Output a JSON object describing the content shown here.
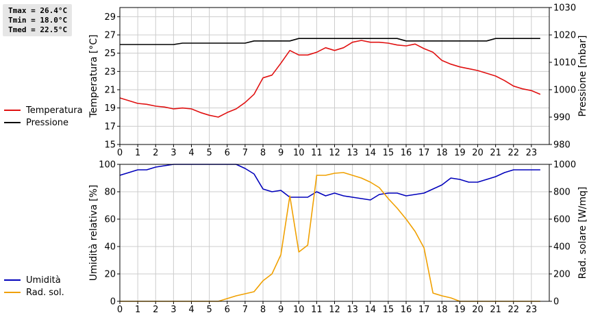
{
  "stats": {
    "tmax": "Tmax = 26.4°C",
    "tmin": "Tmin = 18.0°C",
    "tmed": "Tmed = 22.5°C"
  },
  "colors": {
    "temperature": "#e01010",
    "pressure": "#000000",
    "humidity": "#0000bb",
    "radiation": "#f0a000",
    "grid": "#cccccc"
  },
  "chart_data": [
    {
      "type": "line",
      "title": "",
      "ylabel": "Temperatura [°C]",
      "y2label": "Pressione [mbar]",
      "xlim": [
        0,
        24
      ],
      "ylim": [
        15,
        30
      ],
      "y2lim": [
        980,
        1030
      ],
      "xticks": [
        "0",
        "1",
        "2",
        "3",
        "4",
        "5",
        "6",
        "7",
        "8",
        "9",
        "10",
        "11",
        "12",
        "13",
        "14",
        "15",
        "16",
        "17",
        "18",
        "19",
        "20",
        "21",
        "22",
        "23"
      ],
      "yticks": [
        "15",
        "17",
        "19",
        "21",
        "23",
        "25",
        "27",
        "29"
      ],
      "y2ticks": [
        "980",
        "990",
        "1000",
        "1010",
        "1020",
        "1030"
      ],
      "grid": true,
      "legend_position": "left",
      "series": [
        {
          "name": "Temperatura",
          "axis": "left",
          "x": [
            0,
            0.5,
            1,
            1.5,
            2,
            2.5,
            3,
            3.5,
            4,
            4.5,
            5,
            5.5,
            6,
            6.5,
            7,
            7.5,
            8,
            8.5,
            9,
            9.5,
            10,
            10.5,
            11,
            11.5,
            12,
            12.5,
            13,
            13.5,
            14,
            14.5,
            15,
            15.5,
            16,
            16.5,
            17,
            17.5,
            18,
            18.5,
            19,
            19.5,
            20,
            20.5,
            21,
            21.5,
            22,
            22.5,
            23,
            23.5
          ],
          "y": [
            20.1,
            19.8,
            19.5,
            19.4,
            19.2,
            19.1,
            18.9,
            19.0,
            18.9,
            18.5,
            18.2,
            18.0,
            18.5,
            18.9,
            19.6,
            20.5,
            22.3,
            22.6,
            23.9,
            25.3,
            24.8,
            24.8,
            25.1,
            25.6,
            25.3,
            25.6,
            26.2,
            26.4,
            26.2,
            26.2,
            26.1,
            25.9,
            25.8,
            26.0,
            25.5,
            25.1,
            24.2,
            23.8,
            23.5,
            23.3,
            23.1,
            22.8,
            22.5,
            22.0,
            21.4,
            21.1,
            20.9,
            20.5
          ]
        },
        {
          "name": "Pressione",
          "axis": "right",
          "x": [
            0,
            3,
            3.5,
            7,
            7.5,
            9.5,
            10,
            15.5,
            16,
            20.5,
            21,
            23.5
          ],
          "y": [
            1016.5,
            1016.5,
            1017.0,
            1017.0,
            1017.8,
            1017.8,
            1018.7,
            1018.7,
            1017.8,
            1017.8,
            1018.7,
            1018.7
          ]
        }
      ]
    },
    {
      "type": "line",
      "title": "",
      "ylabel": "Umidità relativa [%]",
      "y2label": "Rad. solare [W/mq]",
      "xlim": [
        0,
        24
      ],
      "ylim": [
        0,
        100
      ],
      "y2lim": [
        0,
        1000
      ],
      "xticks": [
        "0",
        "1",
        "2",
        "3",
        "4",
        "5",
        "6",
        "7",
        "8",
        "9",
        "10",
        "11",
        "12",
        "13",
        "14",
        "15",
        "16",
        "17",
        "18",
        "19",
        "20",
        "21",
        "22",
        "23"
      ],
      "yticks": [
        "0",
        "20",
        "40",
        "60",
        "80",
        "100"
      ],
      "y2ticks": [
        "0",
        "200",
        "400",
        "600",
        "800",
        "1000"
      ],
      "grid": true,
      "legend_position": "left",
      "series": [
        {
          "name": "Umidità",
          "axis": "left",
          "x": [
            0,
            0.5,
            1,
            1.5,
            2,
            2.5,
            3,
            3.5,
            4,
            4.5,
            5,
            5.5,
            6,
            6.5,
            7,
            7.5,
            8,
            8.5,
            9,
            9.5,
            10,
            10.5,
            11,
            11.5,
            12,
            12.5,
            13,
            13.5,
            14,
            14.5,
            15,
            15.5,
            16,
            16.5,
            17,
            17.5,
            18,
            18.5,
            19,
            19.5,
            20,
            20.5,
            21,
            21.5,
            22,
            22.5,
            23,
            23.5
          ],
          "y": [
            92,
            94,
            96,
            96,
            98,
            99,
            100,
            100,
            100,
            100,
            100,
            100,
            100,
            100,
            97,
            93,
            82,
            80,
            81,
            76,
            76,
            76,
            80,
            77,
            79,
            77,
            76,
            75,
            74,
            78,
            79,
            79,
            77,
            78,
            79,
            82,
            85,
            90,
            89,
            87,
            87,
            89,
            91,
            94,
            96,
            96,
            96,
            96
          ]
        },
        {
          "name": "Rad. sol.",
          "axis": "right",
          "x": [
            0,
            0.5,
            1,
            1.5,
            2,
            2.5,
            3,
            3.5,
            4,
            4.5,
            5,
            5.5,
            6,
            6.5,
            7,
            7.5,
            8,
            8.5,
            9,
            9.5,
            10,
            10.5,
            11,
            11.5,
            12,
            12.5,
            13,
            13.5,
            14,
            14.5,
            15,
            15.5,
            16,
            16.5,
            17,
            17.5,
            18,
            18.5,
            19,
            19.5,
            20,
            20.5,
            21,
            21.5,
            22,
            22.5,
            23,
            23.5
          ],
          "y": [
            0,
            0,
            0,
            0,
            0,
            0,
            0,
            0,
            0,
            0,
            0,
            0,
            20,
            40,
            55,
            70,
            150,
            200,
            340,
            770,
            360,
            410,
            920,
            920,
            935,
            940,
            920,
            900,
            870,
            830,
            750,
            680,
            600,
            510,
            390,
            60,
            40,
            25,
            0,
            0,
            0,
            0,
            0,
            0,
            0,
            0,
            0,
            0
          ]
        }
      ]
    }
  ]
}
